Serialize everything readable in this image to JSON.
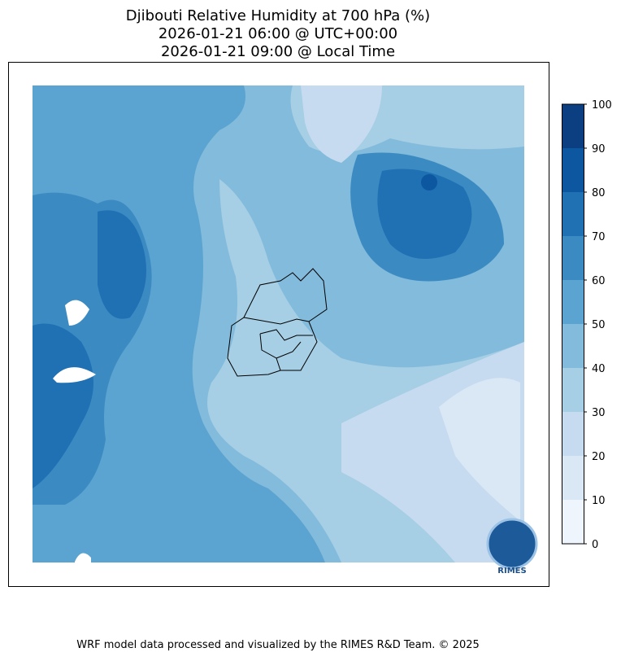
{
  "title": [
    "Djibouti Relative Humidity at 700 hPa (%)",
    "2026-01-21 06:00 @ UTC+00:00",
    "2026-01-21 09:00 @ Local Time"
  ],
  "colorbar": {
    "ticks": [
      0,
      10,
      20,
      30,
      40,
      50,
      60,
      70,
      80,
      90,
      100
    ],
    "colors": [
      "#eef5fc",
      "#dae8f5",
      "#c6dbef",
      "#a6cee4",
      "#82bbdb",
      "#5ba3d0",
      "#3b8bc2",
      "#2070b4",
      "#0d57a1",
      "#0b3f82"
    ]
  },
  "logo": "RIMES",
  "footer": "WRF model data processed and visualized by the RIMES R&D Team. © 2025"
}
